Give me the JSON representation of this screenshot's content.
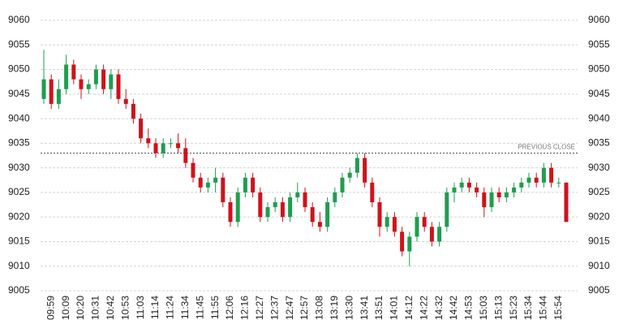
{
  "chart_data": {
    "type": "candlestick",
    "categories": [
      null,
      "09:59",
      null,
      "10:09",
      null,
      "10:20",
      null,
      "10:31",
      null,
      "10:42",
      null,
      "10:53",
      null,
      "11:03",
      null,
      "11:14",
      null,
      "11:24",
      null,
      "11:34",
      null,
      "11:45",
      null,
      "11:55",
      null,
      "12:06",
      null,
      "12:16",
      null,
      "12:27",
      null,
      "12:37",
      null,
      "12:47",
      null,
      "12:57",
      null,
      "13:08",
      null,
      "13:19",
      null,
      "13:30",
      null,
      "13:41",
      null,
      "13:51",
      null,
      "14:01",
      null,
      "14:12",
      null,
      "14:22",
      null,
      "14:32",
      null,
      "14:42",
      null,
      "14:53",
      null,
      "15:03",
      null,
      "15:13",
      null,
      "15:23",
      null,
      "15:34",
      null,
      "15:44",
      null,
      "15:54",
      null
    ],
    "open": [
      9044,
      9048,
      9043,
      9046,
      9051,
      9048,
      9046,
      9047,
      9050,
      9046,
      9049,
      9044,
      9043,
      9040,
      9036,
      9035,
      9033,
      9035,
      9035,
      9034,
      9031,
      9028,
      9026,
      9027,
      9028,
      9023,
      9019,
      9025,
      9028,
      9025,
      9020,
      9022,
      9023,
      9020,
      9024,
      9025,
      9022,
      9019,
      9018,
      9023,
      9025,
      9028,
      9029,
      9032,
      9027,
      9023,
      9018,
      9020,
      9017,
      9013,
      9016,
      9020,
      9018,
      9015,
      9018,
      9025,
      9026,
      9027,
      9026,
      9025,
      9022,
      9025,
      9024,
      9025,
      9026,
      9027,
      9028,
      9027,
      9030,
      9027,
      9027
    ],
    "high": [
      9054,
      9049,
      9048,
      9053,
      9052,
      9049,
      9048,
      9051,
      9051,
      9050,
      9050,
      9046,
      9044,
      9041,
      9038,
      9036,
      9036,
      9036,
      9037,
      9036,
      9032,
      9029,
      9028,
      9030,
      9029,
      9024,
      9026,
      9029,
      9029,
      9026,
      9023,
      9024,
      9024,
      9025,
      9027,
      9026,
      9023,
      9021,
      9024,
      9026,
      9029,
      9030,
      9033,
      9033,
      9028,
      9024,
      9021,
      9021,
      9018,
      9017,
      9021,
      9021,
      9019,
      9019,
      9026,
      9027,
      9028,
      9028,
      9027,
      9026,
      9026,
      9026,
      9026,
      9027,
      9028,
      9029,
      9029,
      9031,
      9031,
      9028,
      9027
    ],
    "low": [
      9043,
      9042,
      9042,
      9045,
      9047,
      9044,
      9045,
      9046,
      9045,
      9044,
      9043,
      9042,
      9039,
      9035,
      9034,
      9032,
      9032,
      9034,
      9033,
      9030,
      9027,
      9025,
      9025,
      9025,
      9022,
      9018,
      9018,
      9024,
      9024,
      9019,
      9019,
      9021,
      9019,
      9019,
      9023,
      9021,
      9018,
      9017,
      9017,
      9022,
      9024,
      9027,
      9028,
      9026,
      9022,
      9016,
      9017,
      9016,
      9012,
      9010,
      9015,
      9017,
      9014,
      9014,
      9017,
      9023,
      9025,
      9025,
      9024,
      9020,
      9021,
      9023,
      9023,
      9024,
      9025,
      9026,
      9026,
      9026,
      9026,
      9026,
      9019
    ],
    "close": [
      9048,
      9043,
      9046,
      9051,
      9048,
      9046,
      9047,
      9050,
      9046,
      9049,
      9044,
      9043,
      9040,
      9036,
      9035,
      9033,
      9035,
      9035,
      9034,
      9031,
      9028,
      9026,
      9027,
      9028,
      9023,
      9019,
      9025,
      9028,
      9025,
      9020,
      9022,
      9023,
      9020,
      9024,
      9025,
      9022,
      9019,
      9018,
      9023,
      9025,
      9028,
      9029,
      9032,
      9027,
      9023,
      9018,
      9020,
      9017,
      9013,
      9016,
      9020,
      9018,
      9015,
      9018,
      9025,
      9026,
      9027,
      9026,
      9025,
      9022,
      9025,
      9024,
      9025,
      9026,
      9027,
      9028,
      9027,
      9030,
      9027,
      9027,
      9019
    ],
    "up_color": "#1e9e4f",
    "down_color": "#d0121b",
    "ylim": [
      9005,
      9060
    ],
    "yticks": [
      9005,
      9010,
      9015,
      9020,
      9025,
      9030,
      9035,
      9040,
      9045,
      9050,
      9055,
      9060
    ],
    "grid": true,
    "previous_close": {
      "value": 9033,
      "label": "PREVIOUS CLOSE"
    }
  }
}
